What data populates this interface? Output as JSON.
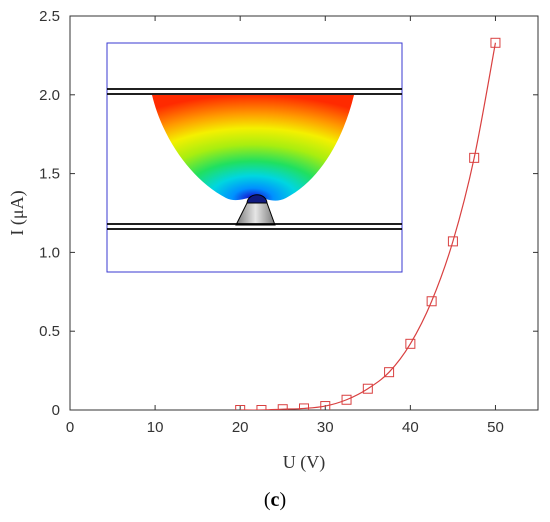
{
  "panel_label": {
    "open": "(",
    "letter": "c",
    "close": ")"
  },
  "chart_data": {
    "type": "line",
    "xlabel": "U (V)",
    "ylabel": "I (μA)",
    "xlim": [
      0,
      55
    ],
    "ylim": [
      0,
      2.5
    ],
    "x_ticks": [
      0,
      10,
      20,
      30,
      40,
      50
    ],
    "y_ticks": [
      0,
      0.5,
      1.0,
      1.5,
      2.0,
      2.5
    ],
    "y_tick_labels": [
      "0",
      "0.5",
      "1.0",
      "1.5",
      "2.0",
      "2.5"
    ],
    "grid": false,
    "legend": "none",
    "series": [
      {
        "marker": "square",
        "color": "#d94040",
        "x": [
          20,
          22.5,
          25,
          27.5,
          30,
          32.5,
          35,
          37.5,
          40,
          42.5,
          45,
          47.5,
          50
        ],
        "y": [
          0.0,
          0.0,
          0.005,
          0.01,
          0.025,
          0.065,
          0.135,
          0.24,
          0.42,
          0.69,
          1.07,
          1.6,
          2.33
        ]
      }
    ],
    "inset": {
      "type": "image",
      "subject": "electric-field-simulation"
    }
  }
}
